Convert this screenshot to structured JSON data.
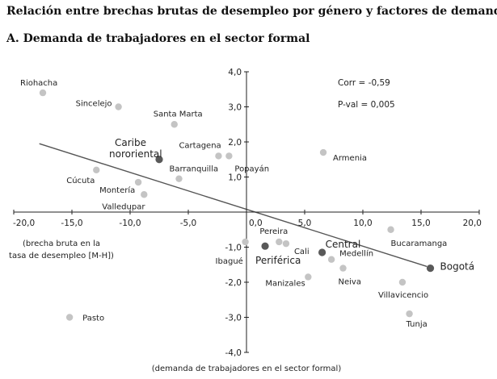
{
  "titles": {
    "main": "Relación entre brechas brutas de desempleo por género y factores de demanda",
    "panel": "A. Demanda de trabajadores en el sector formal"
  },
  "chart_data": {
    "type": "scatter",
    "xlabel": "(demanda de trabajadores en el sector formal)",
    "ylabel_lines": [
      "(brecha bruta en la",
      "tasa de desempleo [M-H])"
    ],
    "xlim": [
      -20,
      20
    ],
    "ylim": [
      -4,
      4
    ],
    "x_ticks": [
      -20,
      -15,
      -10,
      -5,
      0,
      5,
      10,
      15,
      20
    ],
    "x_tick_labels": [
      "-20,0",
      "-15,0",
      "-10,0",
      "-5,0",
      "0,0",
      "5,0",
      "10,0",
      "15,0",
      "20,0"
    ],
    "y_ticks": [
      4,
      3,
      2,
      1,
      0,
      -1,
      -2,
      -3,
      -4
    ],
    "y_tick_labels": [
      "4,0",
      "3,0",
      "2,0",
      "1,0",
      "0,0",
      "-1,0",
      "-2,0",
      "-3,0",
      "-4,0"
    ],
    "annotations": [
      "Corr =  -0,59",
      "P-val = 0,005"
    ],
    "trendline": {
      "x": [
        -17.8,
        15.5
      ],
      "y": [
        1.95,
        -1.55
      ]
    },
    "cities": [
      {
        "label": "Riohacha",
        "x": -17.5,
        "y": 3.4
      },
      {
        "label": "Sincelejo",
        "x": -11.0,
        "y": 3.0
      },
      {
        "label": "Santa Marta",
        "x": -6.2,
        "y": 2.5
      },
      {
        "label": "Cartagena",
        "x": -2.4,
        "y": 1.6
      },
      {
        "label": "Popayán",
        "x": -1.5,
        "y": 1.6
      },
      {
        "label": "Armenia",
        "x": 6.6,
        "y": 1.7
      },
      {
        "label": "Barranquilla",
        "x": -5.8,
        "y": 0.95
      },
      {
        "label": "Cúcuta",
        "x": -12.9,
        "y": 1.2
      },
      {
        "label": "Montería",
        "x": -9.3,
        "y": 0.85
      },
      {
        "label": "Valledupar",
        "x": -8.8,
        "y": 0.5
      },
      {
        "label": "Pereira",
        "x": 2.8,
        "y": -0.85
      },
      {
        "label": "Ibagué",
        "x": -0.1,
        "y": -0.85
      },
      {
        "label": "Cali",
        "x": 3.4,
        "y": -0.9
      },
      {
        "label": "Medellín",
        "x": 7.3,
        "y": -1.35
      },
      {
        "label": "Neiva",
        "x": 8.3,
        "y": -1.6
      },
      {
        "label": "Manizales",
        "x": 5.3,
        "y": -1.85
      },
      {
        "label": "Bucaramanga",
        "x": 12.4,
        "y": -0.5
      },
      {
        "label": "Villavicencio",
        "x": 13.4,
        "y": -2.0
      },
      {
        "label": "Tunja",
        "x": 14.0,
        "y": -2.9
      },
      {
        "label": "Pasto",
        "x": -15.2,
        "y": -3.0
      }
    ],
    "regions": [
      {
        "label_lines": [
          "Caribe",
          "nororiental"
        ],
        "x": -7.5,
        "y": 1.5
      },
      {
        "label_lines": [
          "Periférica"
        ],
        "x": 1.6,
        "y": -0.97
      },
      {
        "label_lines": [
          "Central"
        ],
        "x": 6.5,
        "y": -1.15
      },
      {
        "label_lines": [
          "Bogotá"
        ],
        "x": 15.8,
        "y": -1.6
      }
    ],
    "colors": {
      "city_marker": "#c4c4c4",
      "region_marker": "#595959",
      "trendline": "#555555",
      "axis": "#222222"
    }
  }
}
